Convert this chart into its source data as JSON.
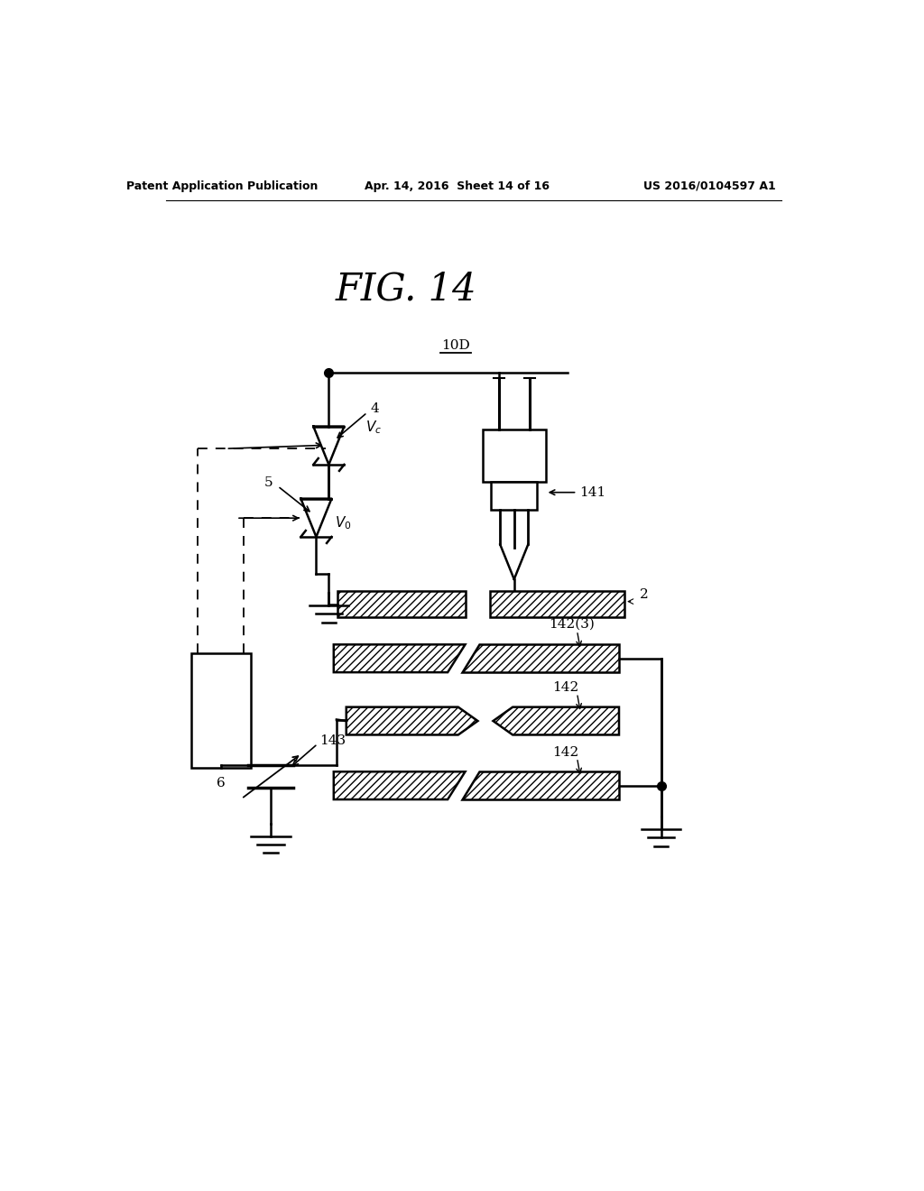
{
  "header_left": "Patent Application Publication",
  "header_center": "Apr. 14, 2016  Sheet 14 of 16",
  "header_right": "US 2016/0104597 A1",
  "fig_title": "FIG. 14",
  "label_10D": "10D",
  "label_4": "4",
  "label_5": "5",
  "label_6": "6",
  "label_2": "2",
  "label_141": "141",
  "label_142_3": "142(3)",
  "label_142a": "142",
  "label_142b": "142",
  "label_143": "143",
  "bg_color": "#ffffff",
  "lc": "#000000"
}
